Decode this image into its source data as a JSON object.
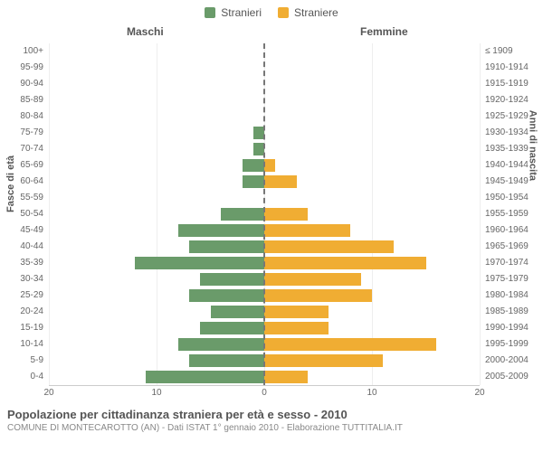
{
  "legend": {
    "male": {
      "label": "Stranieri",
      "color": "#6a9b6a"
    },
    "female": {
      "label": "Straniere",
      "color": "#f0ad33"
    }
  },
  "header": {
    "left": "Maschi",
    "right": "Femmine"
  },
  "axis": {
    "y_left_title": "Fasce di età",
    "y_right_title": "Anni di nascita",
    "xmax": 20,
    "x_ticks_left": [
      20,
      10,
      0
    ],
    "x_ticks_right": [
      0,
      10,
      20
    ]
  },
  "chart": {
    "type": "population-pyramid",
    "bar_color_left": "#6a9b6a",
    "bar_color_right": "#f0ad33",
    "grid_color": "#eeeeee",
    "center_color": "#777777",
    "rows": [
      {
        "age": "100+",
        "birth": "≤ 1909",
        "m": 0,
        "f": 0
      },
      {
        "age": "95-99",
        "birth": "1910-1914",
        "m": 0,
        "f": 0
      },
      {
        "age": "90-94",
        "birth": "1915-1919",
        "m": 0,
        "f": 0
      },
      {
        "age": "85-89",
        "birth": "1920-1924",
        "m": 0,
        "f": 0
      },
      {
        "age": "80-84",
        "birth": "1925-1929",
        "m": 0,
        "f": 0
      },
      {
        "age": "75-79",
        "birth": "1930-1934",
        "m": 1,
        "f": 0
      },
      {
        "age": "70-74",
        "birth": "1935-1939",
        "m": 1,
        "f": 0
      },
      {
        "age": "65-69",
        "birth": "1940-1944",
        "m": 2,
        "f": 1
      },
      {
        "age": "60-64",
        "birth": "1945-1949",
        "m": 2,
        "f": 3
      },
      {
        "age": "55-59",
        "birth": "1950-1954",
        "m": 0,
        "f": 0
      },
      {
        "age": "50-54",
        "birth": "1955-1959",
        "m": 4,
        "f": 4
      },
      {
        "age": "45-49",
        "birth": "1960-1964",
        "m": 8,
        "f": 8
      },
      {
        "age": "40-44",
        "birth": "1965-1969",
        "m": 7,
        "f": 12
      },
      {
        "age": "35-39",
        "birth": "1970-1974",
        "m": 12,
        "f": 15
      },
      {
        "age": "30-34",
        "birth": "1975-1979",
        "m": 6,
        "f": 9
      },
      {
        "age": "25-29",
        "birth": "1980-1984",
        "m": 7,
        "f": 10
      },
      {
        "age": "20-24",
        "birth": "1985-1989",
        "m": 5,
        "f": 6
      },
      {
        "age": "15-19",
        "birth": "1990-1994",
        "m": 6,
        "f": 6
      },
      {
        "age": "10-14",
        "birth": "1995-1999",
        "m": 8,
        "f": 16
      },
      {
        "age": "5-9",
        "birth": "2000-2004",
        "m": 7,
        "f": 11
      },
      {
        "age": "0-4",
        "birth": "2005-2009",
        "m": 11,
        "f": 4
      }
    ]
  },
  "footer": {
    "title": "Popolazione per cittadinanza straniera per età e sesso - 2010",
    "subtitle": "COMUNE DI MONTECAROTTO (AN) - Dati ISTAT 1° gennaio 2010 - Elaborazione TUTTITALIA.IT"
  }
}
